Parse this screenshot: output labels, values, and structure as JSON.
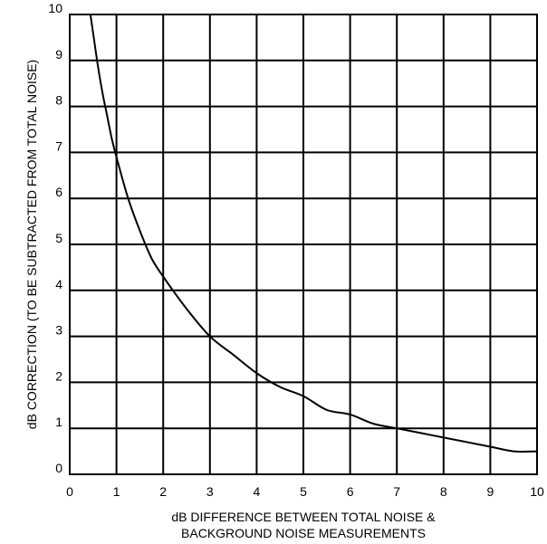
{
  "chart_data": {
    "type": "line",
    "title": "",
    "xlabel_lines": [
      "dB DIFFERENCE BETWEEN TOTAL NOISE &",
      "BACKGROUND NOISE MEASUREMENTS"
    ],
    "ylabel": "dB CORRECTION (TO BE SUBTRACTED FROM TOTAL NOISE)",
    "xlim": [
      0,
      10
    ],
    "ylim": [
      0,
      10
    ],
    "x_ticks": [
      "0",
      "1",
      "2",
      "3",
      "4",
      "5",
      "6",
      "7",
      "8",
      "9",
      "10"
    ],
    "y_ticks": [
      "0",
      "1",
      "2",
      "3",
      "4",
      "5",
      "6",
      "7",
      "8",
      "9",
      "10"
    ],
    "grid": true,
    "legend": "none",
    "series": [
      {
        "x": [
          0.4,
          0.5,
          0.6,
          0.7,
          0.8,
          0.9,
          1,
          1.25,
          1.5,
          1.75,
          2,
          2.5,
          3,
          3.5,
          4,
          4.5,
          5,
          5.5,
          6,
          6.5,
          7,
          7.5,
          8,
          8.5,
          9,
          9.5,
          10
        ],
        "values": [
          10.3,
          9.6,
          8.9,
          8.3,
          7.8,
          7.3,
          6.9,
          6.0,
          5.3,
          4.7,
          4.3,
          3.6,
          3.0,
          2.6,
          2.2,
          1.9,
          1.7,
          1.4,
          1.3,
          1.1,
          1.0,
          0.9,
          0.8,
          0.7,
          0.6,
          0.5,
          0.5
        ],
        "color": "#000000"
      }
    ]
  }
}
